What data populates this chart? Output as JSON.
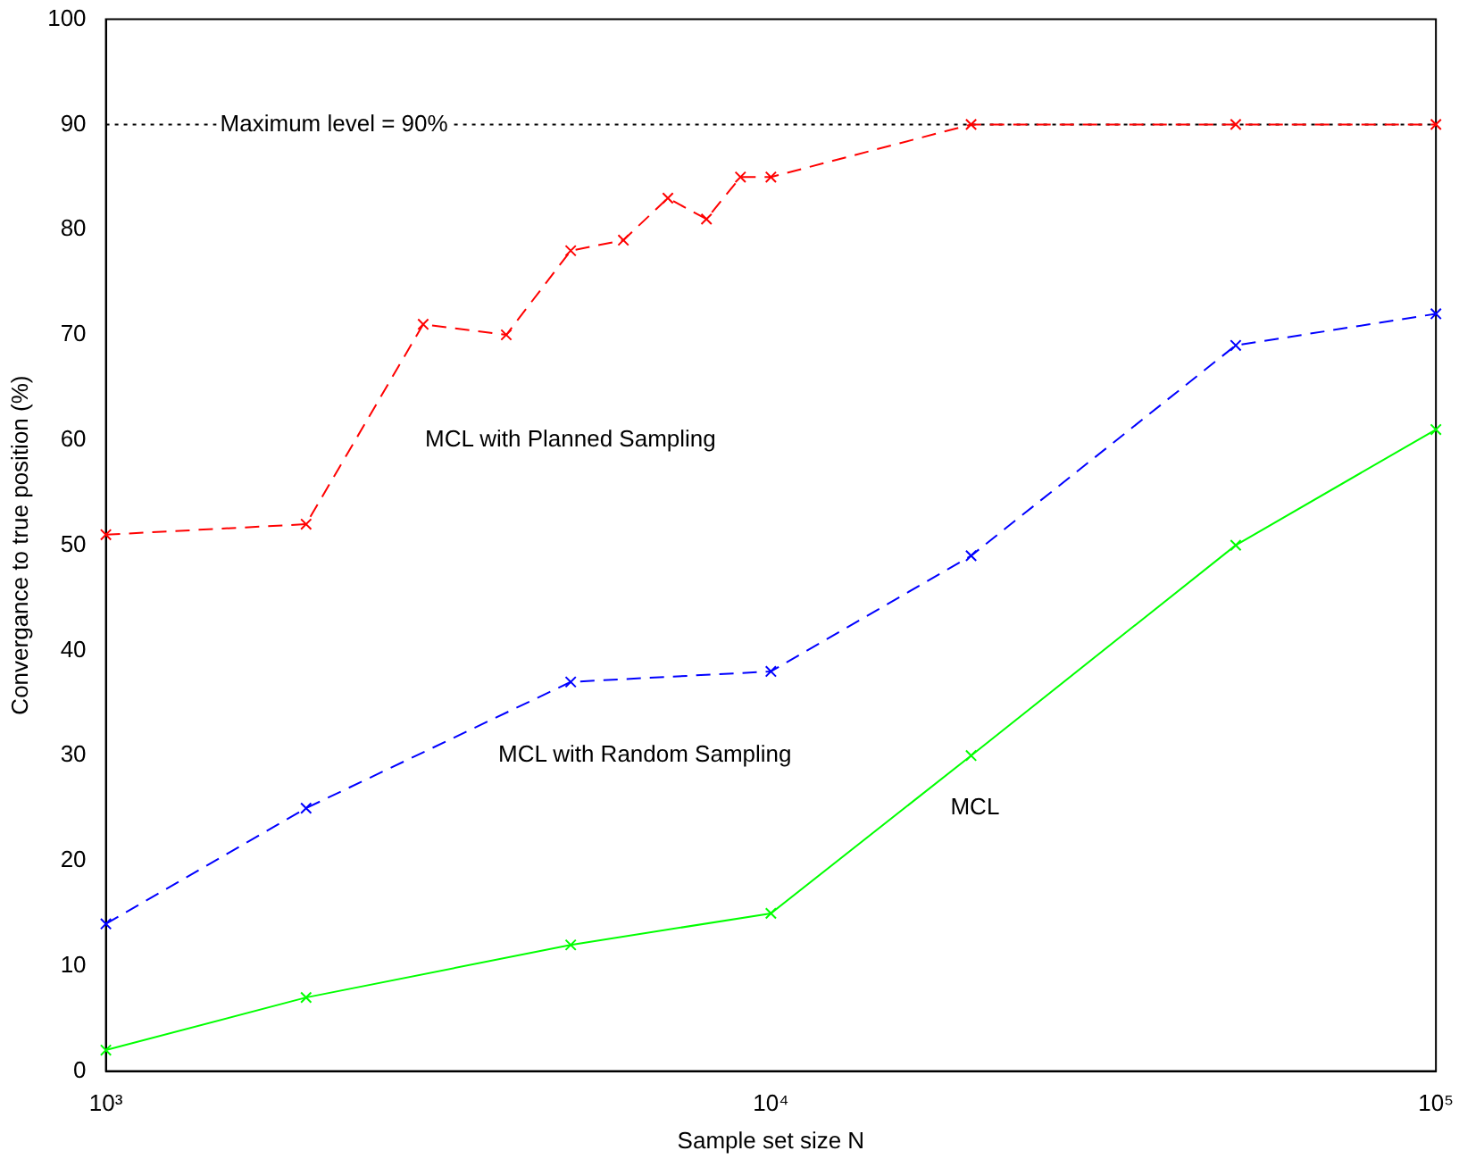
{
  "chart_data": {
    "type": "line",
    "xlabel": "Sample set size N",
    "ylabel": "Convergance to true position (%)",
    "log": "x",
    "xlim": [
      1000,
      100000
    ],
    "xticks": [
      {
        "value": 1000,
        "label": "10³"
      },
      {
        "value": 10000,
        "label": "10⁴"
      },
      {
        "value": 100000,
        "label": "10⁵"
      }
    ],
    "ylim": [
      0,
      100
    ],
    "yticks": [
      0,
      10,
      20,
      30,
      40,
      50,
      60,
      70,
      80,
      90,
      100
    ],
    "grid": false,
    "legend": false,
    "marker": "cross",
    "series": [
      {
        "name": "MCL with Planned Sampling",
        "color": "#ff0000",
        "line_style": "dashed",
        "x": [
          1000,
          2000,
          3000,
          4000,
          5000,
          6000,
          7000,
          8000,
          9000,
          10000,
          20000,
          50000,
          100000
        ],
        "values": [
          51,
          52,
          71,
          70,
          78,
          79,
          83,
          81,
          85,
          85,
          90,
          90,
          90
        ]
      },
      {
        "name": "MCL with Random Sampling",
        "color": "#0000ff",
        "line_style": "dashed",
        "x": [
          1000,
          2000,
          5000,
          10000,
          20000,
          50000,
          100000
        ],
        "values": [
          14,
          25,
          37,
          38,
          49,
          69,
          72
        ]
      },
      {
        "name": "MCL",
        "color": "#00ff00",
        "line_style": "solid",
        "x": [
          1000,
          2000,
          5000,
          10000,
          20000,
          50000,
          100000
        ],
        "values": [
          2,
          7,
          12,
          15,
          30,
          50,
          61
        ]
      }
    ],
    "ref_lines": [
      {
        "axis": "y",
        "value": 90,
        "label": "Maximum level = 90%",
        "color": "#000000",
        "line_style": "dotted"
      }
    ]
  }
}
